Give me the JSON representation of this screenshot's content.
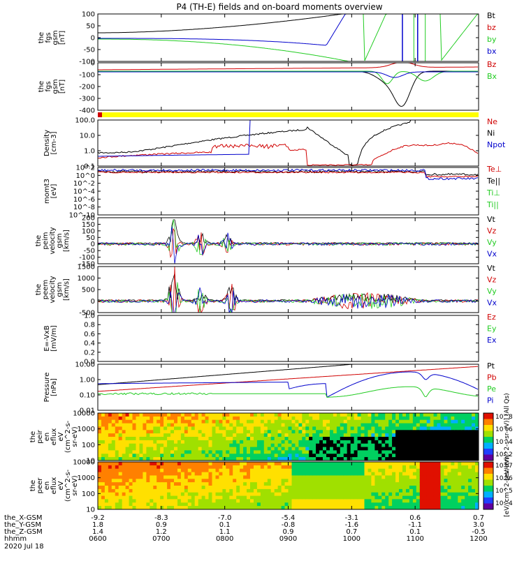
{
  "title": "P4 (TH-E) fields and on-board moments overview",
  "colors": {
    "black": "#000000",
    "red": "#d00000",
    "green": "#22cc22",
    "blue": "#0000cc",
    "yellow": "#ffff00"
  },
  "chart_data": {
    "type": "line",
    "time_axis": {
      "ticks_hhmm": [
        "0600",
        "0700",
        "0800",
        "0900",
        "1000",
        "1100",
        "1200"
      ],
      "rows": [
        {
          "label": "the_X-GSM",
          "values": [
            "-9.2",
            "-8.3",
            "-7.0",
            "-5.4",
            "-3.1",
            "0.6",
            "0.7"
          ]
        },
        {
          "label": "the_Y-GSM",
          "values": [
            "1.8",
            "0.9",
            "0.1",
            "-0.8",
            "-1.6",
            "-1.1",
            "3.0"
          ]
        },
        {
          "label": "the_Z-GSM",
          "values": [
            "1.4",
            "1.2",
            "1.1",
            "0.9",
            "0.7",
            "0.1",
            "-0.5"
          ]
        },
        {
          "label": "hhmm",
          "values": [
            "0600",
            "0700",
            "0800",
            "0900",
            "1000",
            "1100",
            "1200"
          ]
        }
      ],
      "date": "2020 Jul 18"
    },
    "panels": [
      {
        "id": "fgs1",
        "ylabel": [
          "the",
          "fgs",
          "gsm",
          "[nT]"
        ],
        "ylim": [
          -100,
          100
        ],
        "ticks": [
          "100",
          "50",
          "0",
          "-50",
          "-100"
        ],
        "legend": [
          {
            "name": "Bt",
            "color": "black"
          },
          {
            "name": "bz",
            "color": "red"
          },
          {
            "name": "by",
            "color": "green"
          },
          {
            "name": "bx",
            "color": "blue"
          }
        ]
      },
      {
        "id": "fgs2",
        "ylabel": [
          "the",
          "fgs",
          "gsm",
          "[nT]"
        ],
        "ylim": [
          -450,
          50
        ],
        "ticks": [
          "0",
          "-100",
          "-200",
          "-300",
          "-400"
        ],
        "legend": [
          {
            "name": "Bz",
            "color": "red"
          },
          {
            "name": "Bx",
            "color": "green"
          }
        ]
      },
      {
        "id": "density",
        "ylabel": [
          "Density",
          "[cm-3]"
        ],
        "log": true,
        "ylim": [
          0.1,
          200
        ],
        "ticks": [
          "100.0",
          "10.0",
          "1.0",
          "0.1"
        ],
        "legend": [
          {
            "name": "Ne",
            "color": "red"
          },
          {
            "name": "Ni",
            "color": "black"
          },
          {
            "name": "Npot",
            "color": "blue"
          }
        ]
      },
      {
        "id": "temp",
        "ylabel": [
          "momt3",
          "[eV]"
        ],
        "log": true,
        "ticks": [
          "10^2",
          "10^0",
          "10^-2",
          "10^-4",
          "10^-6",
          "10^-8",
          "10^-10"
        ],
        "legend": [
          {
            "name": "Te⊥",
            "color": "red"
          },
          {
            "name": "Te||",
            "color": "black"
          },
          {
            "name": "Ti⊥",
            "color": "green"
          },
          {
            "name": "Ti||",
            "color": "green"
          }
        ]
      },
      {
        "id": "vi",
        "ylabel": [
          "the",
          "peim",
          "velocity",
          "gsm",
          "[km/s]"
        ],
        "ylim": [
          -150,
          200
        ],
        "ticks": [
          "200",
          "150",
          "100",
          "50",
          "0",
          "-50",
          "-100",
          "-150"
        ],
        "legend": [
          {
            "name": "Vt",
            "color": "black"
          },
          {
            "name": "Vz",
            "color": "red"
          },
          {
            "name": "Vy",
            "color": "green"
          },
          {
            "name": "Vx",
            "color": "blue"
          }
        ]
      },
      {
        "id": "ve",
        "ylabel": [
          "the",
          "peem",
          "velocity",
          "gsm",
          "[km/s]"
        ],
        "ylim": [
          -500,
          1500
        ],
        "ticks": [
          "1500",
          "1000",
          "500",
          "0",
          "-500"
        ],
        "legend": [
          {
            "name": "Vt",
            "color": "black"
          },
          {
            "name": "Vz",
            "color": "red"
          },
          {
            "name": "Vy",
            "color": "green"
          },
          {
            "name": "Vx",
            "color": "blue"
          }
        ]
      },
      {
        "id": "efield",
        "ylabel": [
          "E=-VxB",
          "[mV/m]"
        ],
        "ylim": [
          0,
          1
        ],
        "ticks": [
          "1.0",
          "0.8",
          "0.6",
          "0.4",
          "0.2",
          "0.0"
        ],
        "legend": [
          {
            "name": "Ez",
            "color": "red"
          },
          {
            "name": "Ey",
            "color": "green"
          },
          {
            "name": "Ex",
            "color": "blue"
          }
        ]
      },
      {
        "id": "pressure",
        "ylabel": [
          "Pressure",
          "[nPa]"
        ],
        "log": true,
        "ylim": [
          0.005,
          20
        ],
        "ticks": [
          "10.00",
          "1.00",
          "0.10",
          "0.01"
        ],
        "legend": [
          {
            "name": "Pt",
            "color": "black"
          },
          {
            "name": "Pb",
            "color": "red"
          },
          {
            "name": "Pe",
            "color": "green"
          },
          {
            "name": "Pi",
            "color": "blue"
          }
        ]
      },
      {
        "id": "ion_spec",
        "ylabel": [
          "the",
          "peir",
          "en",
          "eflux",
          "eV",
          "(cm^2-s-",
          "sr-eV)"
        ],
        "ticks": [
          "10000",
          "1000",
          "100",
          "10"
        ],
        "colorbar": {
          "label": "[eV/(cm^2-s-sr-eV)] (All Qs)",
          "ticks": [
            "10^8",
            "10^6",
            "10^4",
            "10^2"
          ]
        }
      },
      {
        "id": "elec_spec",
        "ylabel": [
          "the",
          "peer",
          "en",
          "eflux",
          "eV",
          "(cm^2-s-",
          "sr-eV)"
        ],
        "ticks": [
          "10000",
          "1000",
          "100",
          "10"
        ],
        "colorbar": {
          "label": "[eV/(cm^2-s-sr-eV)]",
          "ticks": [
            "10^7",
            "10^6",
            "10^5",
            "10^4"
          ]
        }
      }
    ]
  }
}
